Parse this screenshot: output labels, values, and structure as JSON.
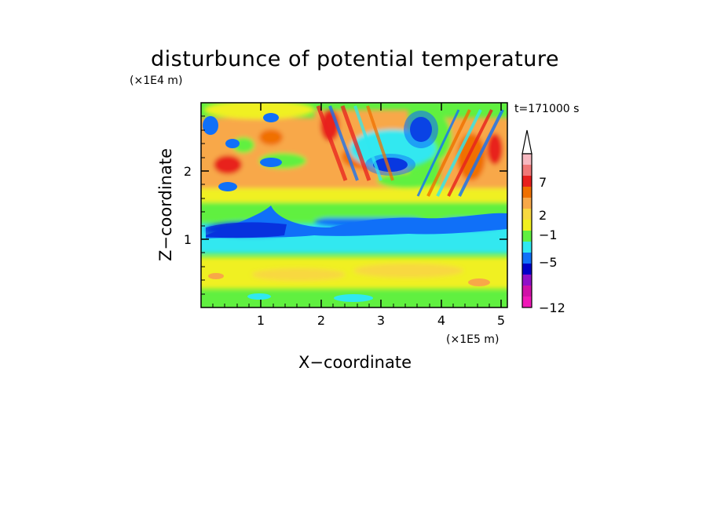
{
  "chart_data": {
    "type": "heatmap",
    "title": "disturbunce of potential temperature",
    "time_label": "t=171000 s",
    "xlabel": "X−coordinate",
    "ylabel": "Z−coordinate",
    "x_scale_label": "(×1E5 m)",
    "y_scale_label": "(×1E4 m)",
    "x_ticks": [
      "1",
      "2",
      "3",
      "4",
      "5"
    ],
    "y_ticks": [
      "1",
      "2"
    ],
    "xlim": [
      0,
      5.1
    ],
    "ylim": [
      0,
      3
    ],
    "colorbar": {
      "labels": [
        "7",
        "2",
        "−1",
        "−5",
        "−12"
      ],
      "label_levels": [
        7,
        2,
        -1,
        -5,
        -12
      ],
      "colors": [
        "#f7b8c0",
        "#f07878",
        "#e8201e",
        "#f07000",
        "#f8a848",
        "#f8d840",
        "#f0f020",
        "#60f040",
        "#30e8f0",
        "#1070f8",
        "#0000c8",
        "#9010c8",
        "#d010a8",
        "#f018b8"
      ],
      "extend": "max"
    }
  }
}
